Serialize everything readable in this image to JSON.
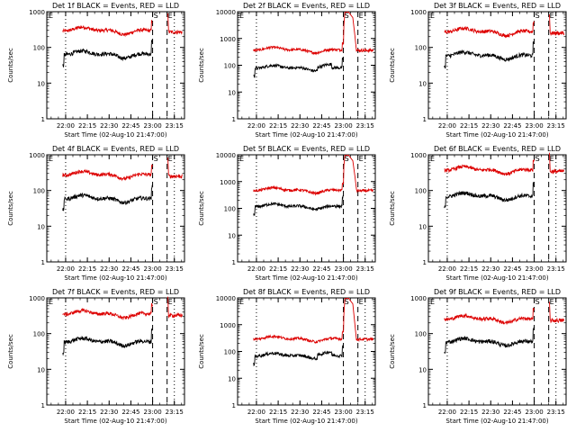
{
  "chart_data": {
    "type": "line",
    "layout": "3x3 grid",
    "shared": {
      "ylabel": "Counts/sec",
      "xlabel": "Start Time (02-Aug-10 21:47:00)",
      "x_ticks": [
        "22:00",
        "22:15",
        "22:30",
        "22:45",
        "23:00",
        "23:15"
      ],
      "x_tick_minutes": [
        13,
        28,
        43,
        58,
        73,
        88
      ],
      "xlim_minutes": [
        0,
        95
      ],
      "y_scale": "log",
      "ylim": [
        1,
        1000
      ],
      "y_ticks": [
        1,
        10,
        100,
        1000
      ],
      "marker_labels": {
        "start": "E",
        "saa": "S",
        "end": "E"
      },
      "series_colors": {
        "events": "#000000",
        "lld": "#dd0000"
      }
    },
    "panels": [
      {
        "title": "Det 1f BLACK = Events, RED = LLD",
        "ylim_top": 1000,
        "events_base": 65,
        "lld_base": 300,
        "bump": 0,
        "lld_spike": false,
        "markers": {
          "start_dotted": 13,
          "saa_dashed": 73,
          "end_dashed": 83,
          "dotted_2": 88
        }
      },
      {
        "title": "Det 2f BLACK = Events, RED = LLD",
        "ylim_top": 10000,
        "events_base": 80,
        "lld_base": 380,
        "bump": 1,
        "lld_spike": true,
        "markers": {
          "start_dotted": 13,
          "saa_dashed": 73,
          "end_dashed": 83,
          "dotted_2": 88
        }
      },
      {
        "title": "Det 3f BLACK = Events, RED = LLD",
        "ylim_top": 1000,
        "events_base": 60,
        "lld_base": 280,
        "bump": 0,
        "lld_spike": false,
        "markers": {
          "start_dotted": 13,
          "saa_dashed": 73,
          "end_dashed": 83,
          "dotted_2": 88
        }
      },
      {
        "title": "Det 4f BLACK = Events, RED = LLD",
        "ylim_top": 1000,
        "events_base": 60,
        "lld_base": 280,
        "bump": 0,
        "lld_spike": false,
        "markers": {
          "start_dotted": 13,
          "saa_dashed": 73,
          "end_dashed": 83,
          "dotted_2": 88
        }
      },
      {
        "title": "Det 5f BLACK = Events, RED = LLD",
        "ylim_top": 10000,
        "events_base": 120,
        "lld_base": 480,
        "bump": 0,
        "lld_spike": true,
        "markers": {
          "start_dotted": 13,
          "saa_dashed": 73,
          "end_dashed": 83,
          "dotted_2": 88
        }
      },
      {
        "title": "Det 6f BLACK = Events, RED = LLD",
        "ylim_top": 1000,
        "events_base": 70,
        "lld_base": 380,
        "bump": 0,
        "lld_spike": false,
        "markers": {
          "start_dotted": 13,
          "saa_dashed": 73,
          "end_dashed": 83,
          "dotted_2": 88
        }
      },
      {
        "title": "Det 7f BLACK = Events, RED = LLD",
        "ylim_top": 1000,
        "events_base": 60,
        "lld_base": 360,
        "bump": 0,
        "lld_spike": false,
        "markers": {
          "start_dotted": 13,
          "saa_dashed": 73,
          "end_dashed": 83,
          "dotted_2": 88
        }
      },
      {
        "title": "Det 8f BLACK = Events, RED = LLD",
        "ylim_top": 10000,
        "events_base": 70,
        "lld_base": 300,
        "bump": 1,
        "lld_spike": true,
        "markers": {
          "start_dotted": 13,
          "saa_dashed": 73,
          "end_dashed": 83,
          "dotted_2": 88
        }
      },
      {
        "title": "Det 9f BLACK = Events, RED = LLD",
        "ylim_top": 1000,
        "events_base": 60,
        "lld_base": 260,
        "bump": 0,
        "lld_spike": false,
        "markers": {
          "start_dotted": 13,
          "saa_dashed": 73,
          "end_dashed": 83,
          "dotted_2": 88
        }
      }
    ]
  }
}
